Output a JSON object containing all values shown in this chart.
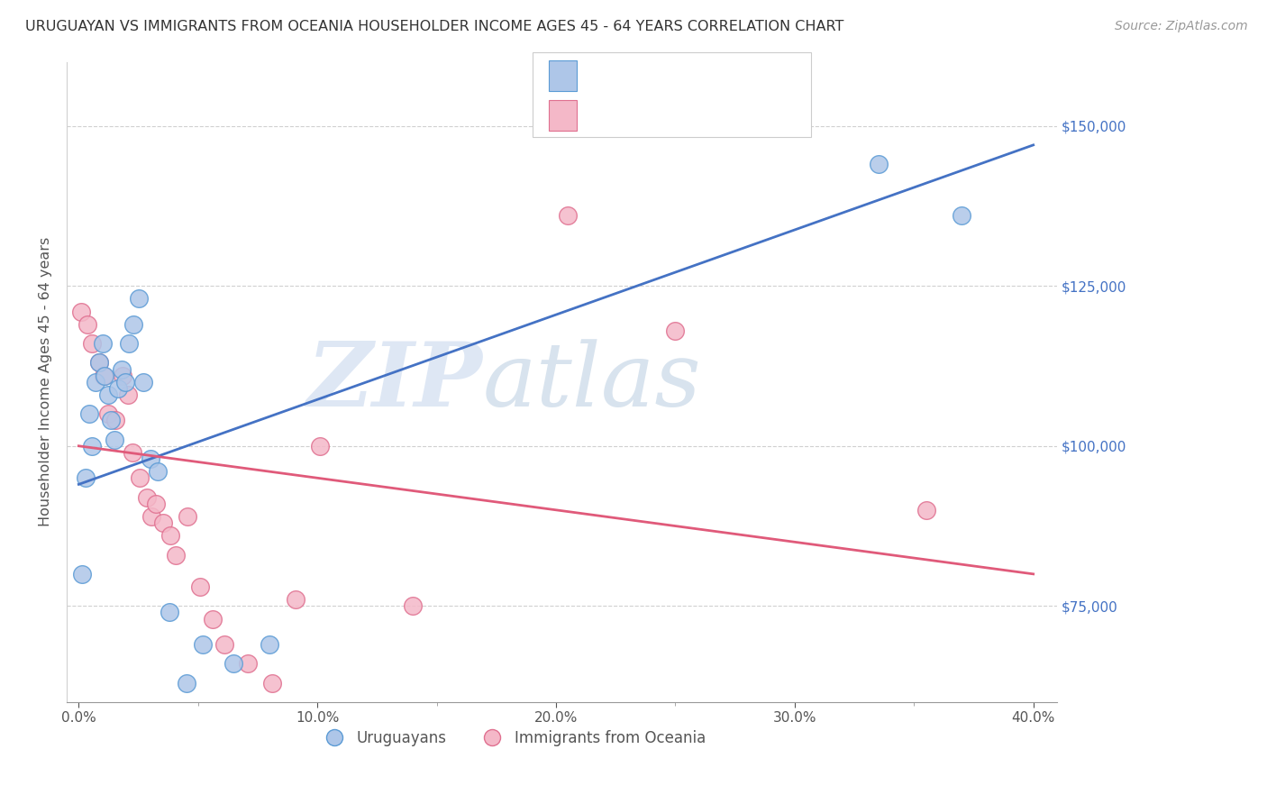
{
  "title": "URUGUAYAN VS IMMIGRANTS FROM OCEANIA HOUSEHOLDER INCOME AGES 45 - 64 YEARS CORRELATION CHART",
  "source": "Source: ZipAtlas.com",
  "xlabel_ticks": [
    "0.0%",
    "10.0%",
    "20.0%",
    "30.0%",
    "40.0%"
  ],
  "xlabel_vals": [
    0.0,
    10.0,
    20.0,
    30.0,
    40.0
  ],
  "ylabel": "Householder Income Ages 45 - 64 years",
  "ylabel_ticks": [
    75000,
    100000,
    125000,
    150000
  ],
  "ylabel_labels": [
    "$75,000",
    "$100,000",
    "$125,000",
    "$150,000"
  ],
  "xlim": [
    -0.5,
    41.0
  ],
  "ylim": [
    60000,
    160000
  ],
  "blue_label": "Uruguayans",
  "pink_label": "Immigrants from Oceania",
  "blue_fill_color": "#aec6e8",
  "pink_fill_color": "#f4b8c8",
  "blue_edge_color": "#5b9bd5",
  "pink_edge_color": "#e07090",
  "blue_line_color": "#4472c4",
  "pink_line_color": "#e05a7a",
  "watermark_zip": "ZIP",
  "watermark_atlas": "atlas",
  "blue_x": [
    0.15,
    0.3,
    0.45,
    0.55,
    0.7,
    0.85,
    1.0,
    1.1,
    1.25,
    1.35,
    1.5,
    1.65,
    1.8,
    1.95,
    2.1,
    2.3,
    2.5,
    2.7,
    3.0,
    3.3,
    3.8,
    4.5,
    5.2,
    6.5,
    8.0,
    33.5,
    37.0
  ],
  "blue_y": [
    80000,
    95000,
    105000,
    100000,
    110000,
    113000,
    116000,
    111000,
    108000,
    104000,
    101000,
    109000,
    112000,
    110000,
    116000,
    119000,
    123000,
    110000,
    98000,
    96000,
    74000,
    63000,
    69000,
    66000,
    69000,
    144000,
    136000
  ],
  "pink_x": [
    0.1,
    0.35,
    0.55,
    0.85,
    1.05,
    1.25,
    1.55,
    1.85,
    2.05,
    2.25,
    2.55,
    2.85,
    3.05,
    3.25,
    3.55,
    3.85,
    4.05,
    4.55,
    5.1,
    5.6,
    6.1,
    7.1,
    8.1,
    9.1,
    10.1,
    14.0,
    20.5,
    25.0,
    35.5
  ],
  "pink_y": [
    121000,
    119000,
    116000,
    113000,
    111000,
    105000,
    104000,
    111000,
    108000,
    99000,
    95000,
    92000,
    89000,
    91000,
    88000,
    86000,
    83000,
    89000,
    78000,
    73000,
    69000,
    66000,
    63000,
    76000,
    100000,
    75000,
    136000,
    118000,
    90000
  ],
  "blue_trend_x": [
    0.0,
    40.0
  ],
  "blue_trend_y": [
    94000,
    147000
  ],
  "pink_trend_x": [
    0.0,
    40.0
  ],
  "pink_trend_y": [
    100000,
    80000
  ],
  "grid_color": "#d0d0d0",
  "title_fontsize": 11.5,
  "source_fontsize": 10,
  "tick_fontsize": 11,
  "ylabel_fontsize": 11.5
}
